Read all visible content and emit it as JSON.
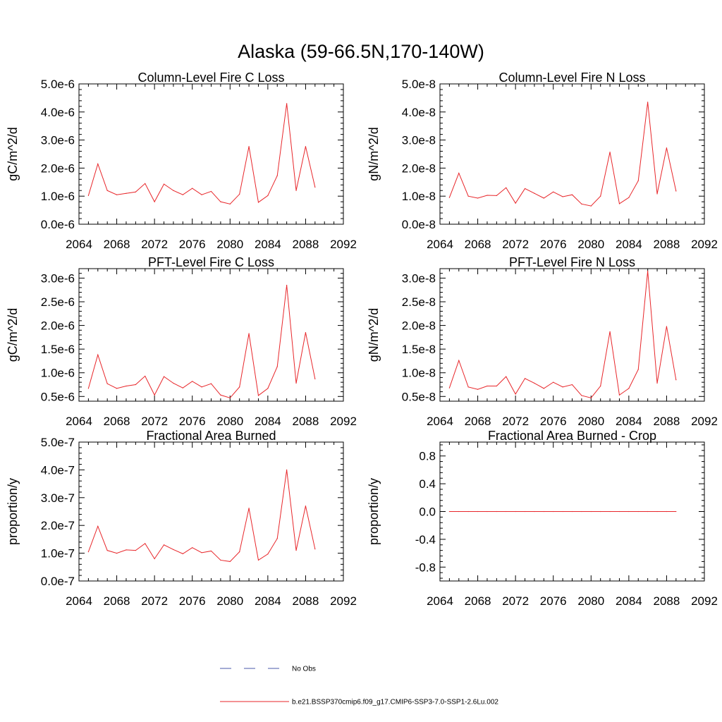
{
  "figure": {
    "title": "Alaska (59-66.5N,170-140W)"
  },
  "legend": {
    "entries": [
      {
        "label": "No Obs",
        "color": "#4a5aa8",
        "style": "dashed"
      },
      {
        "label": "b.e21.BSSP370cmip6.f09_g17.CMIP6-SSP3-7.0-SSP1-2.6Lu.002",
        "color": "#e8262a",
        "style": "solid"
      }
    ]
  },
  "series_color": "#e8262a",
  "chart_data": [
    {
      "type": "line",
      "title": "Column-Level Fire C Loss",
      "ylabel": "gC/m^2/d",
      "xlabel": "",
      "xlim": [
        2064,
        2092
      ],
      "ylim": [
        0,
        5e-06
      ],
      "xticks": [
        2064,
        2068,
        2072,
        2076,
        2080,
        2084,
        2088,
        2092
      ],
      "xtick_labels": [
        "2064",
        "2068",
        "2072",
        "2076",
        "2080",
        "2084",
        "2088",
        "2092"
      ],
      "yticks": [
        0,
        1e-06,
        2e-06,
        3e-06,
        4e-06,
        5e-06
      ],
      "ytick_labels": [
        "0.0e-6",
        "1.0e-6",
        "2.0e-6",
        "3.0e-6",
        "4.0e-6",
        "5.0e-6"
      ],
      "x": [
        2065,
        2066,
        2067,
        2068,
        2069,
        2070,
        2071,
        2072,
        2073,
        2074,
        2075,
        2076,
        2077,
        2078,
        2079,
        2080,
        2081,
        2082,
        2083,
        2084,
        2085,
        2086,
        2087,
        2088,
        2089
      ],
      "series": [
        {
          "values": [
            1.02e-06,
            2.15e-06,
            1.2e-06,
            1.05e-06,
            1.1e-06,
            1.15e-06,
            1.45e-06,
            8e-07,
            1.43e-06,
            1.2e-06,
            1.05e-06,
            1.28e-06,
            1.05e-06,
            1.17e-06,
            8e-07,
            7.2e-07,
            1.07e-06,
            2.77e-06,
            7.8e-07,
            1.02e-06,
            1.73e-06,
            4.3e-06,
            1.2e-06,
            2.77e-06,
            1.32e-06
          ]
        }
      ]
    },
    {
      "type": "line",
      "title": "Column-Level Fire N Loss",
      "ylabel": "gN/m^2/d",
      "xlabel": "",
      "xlim": [
        2064,
        2092
      ],
      "ylim": [
        0,
        5e-08
      ],
      "xticks": [
        2064,
        2068,
        2072,
        2076,
        2080,
        2084,
        2088,
        2092
      ],
      "xtick_labels": [
        "2064",
        "2068",
        "2072",
        "2076",
        "2080",
        "2084",
        "2088",
        "2092"
      ],
      "yticks": [
        0,
        1e-08,
        2e-08,
        3e-08,
        4e-08,
        5e-08
      ],
      "ytick_labels": [
        "0.0e-8",
        "1.0e-8",
        "2.0e-8",
        "3.0e-8",
        "4.0e-8",
        "5.0e-8"
      ],
      "x": [
        2065,
        2066,
        2067,
        2068,
        2069,
        2070,
        2071,
        2072,
        2073,
        2074,
        2075,
        2076,
        2077,
        2078,
        2079,
        2080,
        2081,
        2082,
        2083,
        2084,
        2085,
        2086,
        2087,
        2088,
        2089
      ],
      "series": [
        {
          "values": [
            9.5e-09,
            1.82e-08,
            1e-08,
            9.3e-09,
            1.03e-08,
            1.02e-08,
            1.3e-08,
            7.5e-09,
            1.27e-08,
            1.1e-08,
            9.3e-09,
            1.15e-08,
            9.8e-09,
            1.05e-08,
            7.2e-09,
            6.5e-09,
            1e-08,
            2.57e-08,
            7.3e-09,
            9.5e-09,
            1.55e-08,
            4.35e-08,
            1.08e-08,
            2.72e-08,
            1.18e-08
          ]
        }
      ]
    },
    {
      "type": "line",
      "title": "PFT-Level Fire C Loss",
      "ylabel": "gC/m^2/d",
      "xlabel": "",
      "xlim": [
        2064,
        2092
      ],
      "ylim": [
        4e-07,
        3.2e-06
      ],
      "xticks": [
        2064,
        2068,
        2072,
        2076,
        2080,
        2084,
        2088,
        2092
      ],
      "xtick_labels": [
        "2064",
        "2068",
        "2072",
        "2076",
        "2080",
        "2084",
        "2088",
        "2092"
      ],
      "yticks": [
        5e-07,
        1e-06,
        1.5e-06,
        2e-06,
        2.5e-06,
        3e-06
      ],
      "ytick_labels": [
        "0.5e-6",
        "1.0e-6",
        "1.5e-6",
        "2.0e-6",
        "2.5e-6",
        "3.0e-6"
      ],
      "x": [
        2065,
        2066,
        2067,
        2068,
        2069,
        2070,
        2071,
        2072,
        2073,
        2074,
        2075,
        2076,
        2077,
        2078,
        2079,
        2080,
        2081,
        2082,
        2083,
        2084,
        2085,
        2086,
        2087,
        2088,
        2089
      ],
      "series": [
        {
          "values": [
            6.7e-07,
            1.38e-06,
            7.7e-07,
            6.7e-07,
            7.2e-07,
            7.5e-07,
            9.3e-07,
            5.3e-07,
            9.2e-07,
            7.8e-07,
            6.8e-07,
            8.2e-07,
            7e-07,
            7.7e-07,
            5.3e-07,
            4.7e-07,
            7e-07,
            1.83e-06,
            5.2e-07,
            6.7e-07,
            1.13e-06,
            2.85e-06,
            7.8e-07,
            1.85e-06,
            8.7e-07
          ]
        }
      ]
    },
    {
      "type": "line",
      "title": "PFT-Level Fire N Loss",
      "ylabel": "gN/m^2/d",
      "xlabel": "",
      "xlim": [
        2064,
        2092
      ],
      "ylim": [
        4e-09,
        3.2e-08
      ],
      "xticks": [
        2064,
        2068,
        2072,
        2076,
        2080,
        2084,
        2088,
        2092
      ],
      "xtick_labels": [
        "2064",
        "2068",
        "2072",
        "2076",
        "2080",
        "2084",
        "2088",
        "2092"
      ],
      "yticks": [
        5e-09,
        1e-08,
        1.5e-08,
        2e-08,
        2.5e-08,
        3e-08
      ],
      "ytick_labels": [
        "0.5e-8",
        "1.0e-8",
        "1.5e-8",
        "2.0e-8",
        "2.5e-8",
        "3.0e-8"
      ],
      "x": [
        2065,
        2066,
        2067,
        2068,
        2069,
        2070,
        2071,
        2072,
        2073,
        2074,
        2075,
        2076,
        2077,
        2078,
        2079,
        2080,
        2081,
        2082,
        2083,
        2084,
        2085,
        2086,
        2087,
        2088,
        2089
      ],
      "series": [
        {
          "values": [
            6.8e-09,
            1.26e-08,
            7e-09,
            6.5e-09,
            7.2e-09,
            7.2e-09,
            9.2e-09,
            5.5e-09,
            8.8e-09,
            7.8e-09,
            6.7e-09,
            8e-09,
            7e-09,
            7.5e-09,
            5.2e-09,
            4.7e-09,
            7.2e-09,
            1.87e-08,
            5.3e-09,
            6.7e-09,
            1.07e-08,
            3.15e-08,
            7.8e-09,
            1.98e-08,
            8.5e-09
          ]
        }
      ]
    },
    {
      "type": "line",
      "title": "Fractional Area Burned",
      "ylabel": "proportion/y",
      "xlabel": "",
      "xlim": [
        2064,
        2092
      ],
      "ylim": [
        0,
        5e-07
      ],
      "xticks": [
        2064,
        2068,
        2072,
        2076,
        2080,
        2084,
        2088,
        2092
      ],
      "xtick_labels": [
        "2064",
        "2068",
        "2072",
        "2076",
        "2080",
        "2084",
        "2088",
        "2092"
      ],
      "yticks": [
        0,
        1e-07,
        2e-07,
        3e-07,
        4e-07,
        5e-07
      ],
      "ytick_labels": [
        "0.0e-7",
        "1.0e-7",
        "2.0e-7",
        "3.0e-7",
        "4.0e-7",
        "5.0e-7"
      ],
      "x": [
        2065,
        2066,
        2067,
        2068,
        2069,
        2070,
        2071,
        2072,
        2073,
        2074,
        2075,
        2076,
        2077,
        2078,
        2079,
        2080,
        2081,
        2082,
        2083,
        2084,
        2085,
        2086,
        2087,
        2088,
        2089
      ],
      "series": [
        {
          "values": [
            1.05e-07,
            1.97e-07,
            1.1e-07,
            1e-07,
            1.12e-07,
            1.1e-07,
            1.35e-07,
            8e-08,
            1.3e-07,
            1.13e-07,
            9.8e-08,
            1.2e-07,
            1.02e-07,
            1.08e-07,
            7.5e-08,
            7e-08,
            1.05e-07,
            2.62e-07,
            7.5e-08,
            9.7e-08,
            1.53e-07,
            4e-07,
            1.1e-07,
            2.7e-07,
            1.15e-07
          ]
        }
      ]
    },
    {
      "type": "line",
      "title": "Fractional Area Burned - Crop",
      "ylabel": "proportion/y",
      "xlabel": "",
      "xlim": [
        2064,
        2092
      ],
      "ylim": [
        -1.0,
        1.0
      ],
      "xticks": [
        2064,
        2068,
        2072,
        2076,
        2080,
        2084,
        2088,
        2092
      ],
      "xtick_labels": [
        "2064",
        "2068",
        "2072",
        "2076",
        "2080",
        "2084",
        "2088",
        "2092"
      ],
      "yticks": [
        -0.8,
        -0.4,
        0.0,
        0.4,
        0.8
      ],
      "ytick_labels": [
        "-0.8",
        "-0.4",
        "0.0",
        "0.4",
        "0.8"
      ],
      "x": [
        2065,
        2066,
        2067,
        2068,
        2069,
        2070,
        2071,
        2072,
        2073,
        2074,
        2075,
        2076,
        2077,
        2078,
        2079,
        2080,
        2081,
        2082,
        2083,
        2084,
        2085,
        2086,
        2087,
        2088,
        2089
      ],
      "series": [
        {
          "values": [
            0,
            0,
            0,
            0,
            0,
            0,
            0,
            0,
            0,
            0,
            0,
            0,
            0,
            0,
            0,
            0,
            0,
            0,
            0,
            0,
            0,
            0,
            0,
            0,
            0
          ]
        }
      ]
    }
  ]
}
